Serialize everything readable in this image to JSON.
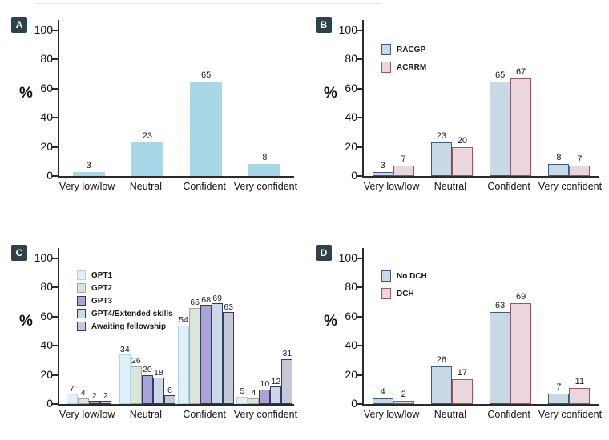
{
  "figure": {
    "description": "Four-panel bar chart figure, panels A-D, confidence ratings in percent",
    "y_axis_title": "%",
    "categories": [
      "Very low/low",
      "Neutral",
      "Confident",
      "Very confident"
    ],
    "yticks": [
      0,
      20,
      40,
      60,
      80,
      100
    ]
  },
  "chart_data": [
    {
      "type": "bar",
      "panel": "A",
      "title": "",
      "xlabel": "",
      "ylabel": "%",
      "ylim": [
        0,
        100
      ],
      "yticks": [
        0,
        20,
        40,
        60,
        80,
        100
      ],
      "grid": false,
      "legend": null,
      "categories": [
        "Very low/low",
        "Neutral",
        "Confident",
        "Very confident"
      ],
      "series": [
        {
          "name": null,
          "values": [
            3,
            23,
            65,
            8
          ],
          "fill": "#a8d7e8",
          "border": "#a8d7e8"
        }
      ]
    },
    {
      "type": "bar",
      "panel": "B",
      "title": "",
      "xlabel": "",
      "ylabel": "%",
      "ylim": [
        0,
        100
      ],
      "yticks": [
        0,
        20,
        40,
        60,
        80,
        100
      ],
      "grid": false,
      "legend": "upper-left-inside",
      "categories": [
        "Very low/low",
        "Neutral",
        "Confident",
        "Very confident"
      ],
      "series": [
        {
          "name": "RACGP",
          "values": [
            3,
            23,
            65,
            8
          ],
          "fill": "#c9d8e6",
          "border": "#3c5a7d"
        },
        {
          "name": "ACRRM",
          "values": [
            7,
            20,
            67,
            7
          ],
          "fill": "#ebd6db",
          "border": "#9c5564"
        }
      ]
    },
    {
      "type": "bar",
      "panel": "C",
      "title": "",
      "xlabel": "",
      "ylabel": "%",
      "ylim": [
        0,
        100
      ],
      "yticks": [
        0,
        20,
        40,
        60,
        80,
        100
      ],
      "grid": false,
      "legend": "upper-left-inside",
      "categories": [
        "Very low/low",
        "Neutral",
        "Confident",
        "Very confident"
      ],
      "series": [
        {
          "name": "GPT1",
          "values": [
            7,
            34,
            54,
            5
          ],
          "fill": "#def0f8",
          "border": "#b0d3e2"
        },
        {
          "name": "GPT2",
          "values": [
            4,
            26,
            66,
            4
          ],
          "fill": "#dde4da",
          "border": "#9fa99d"
        },
        {
          "name": "GPT3",
          "values": [
            2,
            20,
            68,
            10
          ],
          "fill": "#aaa4d6",
          "border": "#32396b"
        },
        {
          "name": "GPT4/Extended skills",
          "values": [
            2,
            18,
            69,
            12
          ],
          "fill": "#c9d9e6",
          "border": "#32396b"
        },
        {
          "name": "Awaiting fellowship",
          "values": [
            0,
            6,
            63,
            31
          ],
          "fill": "#c5c8d6",
          "border": "#32396b"
        }
      ]
    },
    {
      "type": "bar",
      "panel": "D",
      "title": "",
      "xlabel": "",
      "ylabel": "%",
      "ylim": [
        0,
        100
      ],
      "yticks": [
        0,
        20,
        40,
        60,
        80,
        100
      ],
      "grid": false,
      "legend": "upper-left-inside",
      "categories": [
        "Very low/low",
        "Neutral",
        "Confident",
        "Very confident"
      ],
      "series": [
        {
          "name": "No DCH",
          "values": [
            4,
            26,
            63,
            7
          ],
          "fill": "#c9d8e6",
          "border": "#3c5a7d"
        },
        {
          "name": "DCH",
          "values": [
            2,
            17,
            69,
            11
          ],
          "fill": "#ebd6db",
          "border": "#9c5564"
        }
      ]
    }
  ],
  "style": {
    "panel_label_bg": "#2c4448",
    "panel_label_fg": "#ffffff",
    "axis_color": "#2b2b2b",
    "text_color": "#1a1a1a"
  }
}
